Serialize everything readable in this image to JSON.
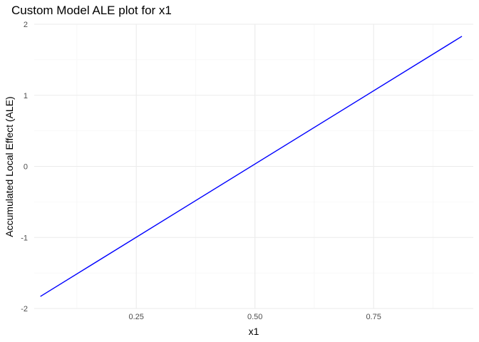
{
  "chart_data": {
    "type": "line",
    "title": "Custom Model ALE plot for x1",
    "xlabel": "x1",
    "ylabel": "Accumulated Local Effect (ALE)",
    "xlim": [
      0.035,
      0.96
    ],
    "ylim": [
      -2,
      2
    ],
    "x_ticks": [
      0.25,
      0.5,
      0.75
    ],
    "x_tick_labels": [
      "0.25",
      "0.50",
      "0.75"
    ],
    "x_minor_ticks": [
      0.125,
      0.375,
      0.625,
      0.875
    ],
    "y_ticks": [
      -2,
      -1,
      0,
      1,
      2
    ],
    "y_tick_labels": [
      "-2",
      "-1",
      "0",
      "1",
      "2"
    ],
    "y_minor_ticks": [
      -1.5,
      -0.5,
      0.5,
      1.5
    ],
    "grid": true,
    "legend": "none",
    "series": [
      {
        "color": "#0000ff",
        "x": [
          0.048,
          0.936
        ],
        "y": [
          -1.83,
          1.83
        ]
      }
    ]
  }
}
